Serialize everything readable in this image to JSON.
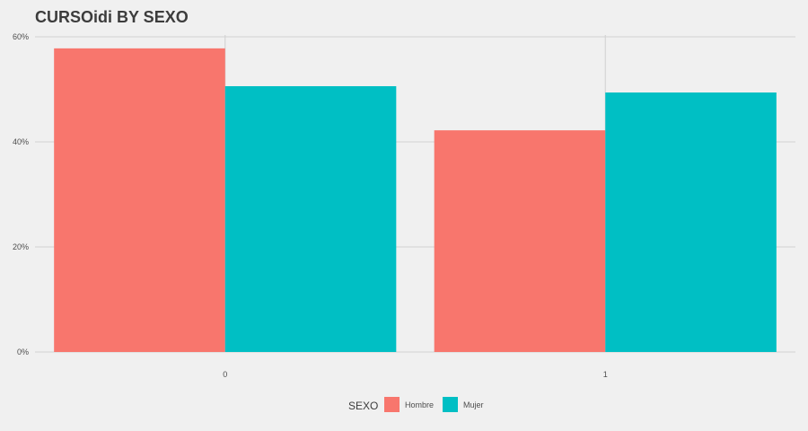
{
  "chart_data": {
    "type": "bar",
    "title": "CURSOidi BY SEXO",
    "xlabel": "",
    "ylabel": "",
    "categories": [
      "0",
      "1"
    ],
    "series": [
      {
        "name": "Hombre",
        "color": "#F8766D",
        "values": [
          0.578,
          0.422
        ]
      },
      {
        "name": "Mujer",
        "color": "#00BFC4",
        "values": [
          0.506,
          0.494
        ]
      }
    ],
    "ylim": [
      0,
      0.6
    ],
    "yticks": [
      {
        "value": 0,
        "label": "0%"
      },
      {
        "value": 0.2,
        "label": "20%"
      },
      {
        "value": 0.4,
        "label": "40%"
      },
      {
        "value": 0.6,
        "label": "60%"
      }
    ],
    "grid": true,
    "legend": {
      "title": "SEXO",
      "position": "bottom",
      "entries": [
        "Hombre",
        "Mujer"
      ]
    }
  }
}
